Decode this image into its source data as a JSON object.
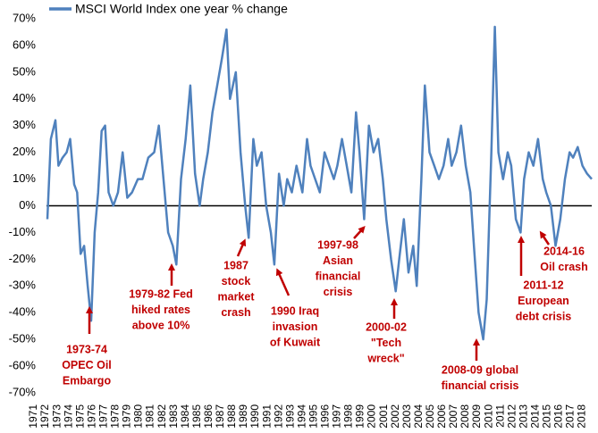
{
  "chart_data": {
    "type": "line",
    "series": [
      {
        "name": "MSCI World Index one year % change",
        "color": "#4f81bd",
        "x": [
          1972.15,
          1972.45,
          1972.84,
          1973.1,
          1973.45,
          1973.8,
          1974.1,
          1974.45,
          1974.7,
          1975.0,
          1975.3,
          1975.6,
          1975.9,
          1976.2,
          1976.5,
          1976.8,
          1977.1,
          1977.4,
          1977.8,
          1978.2,
          1978.6,
          1979.0,
          1979.4,
          1979.9,
          1980.3,
          1980.8,
          1981.3,
          1981.7,
          1982.1,
          1982.5,
          1982.9,
          1983.2,
          1983.6,
          1984.0,
          1984.4,
          1984.8,
          1985.2,
          1985.5,
          1985.9,
          1986.3,
          1986.7,
          1987.1,
          1987.5,
          1987.8,
          1988.3,
          1988.7,
          1989.1,
          1989.4,
          1989.8,
          1990.1,
          1990.5,
          1990.9,
          1991.3,
          1991.6,
          1992.0,
          1992.4,
          1992.7,
          1993.1,
          1993.5,
          1994.0,
          1994.4,
          1994.7,
          1995.1,
          1995.5,
          1995.9,
          1996.3,
          1996.7,
          1997.0,
          1997.4,
          1997.8,
          1998.2,
          1998.6,
          1998.9,
          1999.3,
          1999.7,
          2000.1,
          2000.5,
          2000.9,
          2001.2,
          2001.6,
          2002.0,
          2002.3,
          2002.7,
          2003.1,
          2003.5,
          2003.8,
          2004.2,
          2004.5,
          2004.9,
          2005.3,
          2005.7,
          2006.1,
          2006.5,
          2006.8,
          2007.2,
          2007.6,
          2008.0,
          2008.4,
          2008.7,
          2009.1,
          2009.5,
          2009.8,
          2010.2,
          2010.5,
          2010.8,
          2011.2,
          2011.6,
          2011.9,
          2012.3,
          2012.7,
          2013.0,
          2013.4,
          2013.8,
          2014.2,
          2014.6,
          2014.9,
          2015.3,
          2015.7,
          2016.1,
          2016.5,
          2016.9,
          2017.2,
          2017.6,
          2018.0,
          2018.4,
          2018.8
        ],
        "values": [
          -5,
          25,
          32,
          15,
          18,
          20,
          25,
          8,
          5,
          -18,
          -15,
          -30,
          -43,
          -10,
          5,
          28,
          30,
          5,
          0,
          5,
          20,
          3,
          5,
          10,
          10,
          18,
          20,
          30,
          10,
          -10,
          -15,
          -22,
          10,
          25,
          45,
          12,
          0,
          10,
          20,
          35,
          45,
          55,
          66,
          40,
          50,
          20,
          0,
          -12,
          25,
          15,
          20,
          0,
          -10,
          -22,
          12,
          0,
          10,
          5,
          15,
          5,
          25,
          15,
          10,
          5,
          20,
          15,
          10,
          15,
          25,
          15,
          5,
          35,
          20,
          -5,
          30,
          20,
          25,
          10,
          -5,
          -20,
          -32,
          -20,
          -5,
          -25,
          -15,
          -30,
          10,
          45,
          20,
          15,
          10,
          15,
          25,
          15,
          20,
          30,
          15,
          5,
          -15,
          -40,
          -50,
          -35,
          20,
          67,
          20,
          10,
          20,
          15,
          -5,
          -10,
          10,
          20,
          15,
          25,
          10,
          5,
          0,
          -15,
          -5,
          10,
          20,
          18,
          22,
          15,
          12,
          10
        ]
      }
    ],
    "xlim": [
      1971,
      2018.8
    ],
    "xticks": [
      1971,
      1972,
      1973,
      1974,
      1975,
      1976,
      1977,
      1978,
      1979,
      1980,
      1981,
      1982,
      1983,
      1984,
      1985,
      1986,
      1987,
      1988,
      1989,
      1990,
      1991,
      1992,
      1993,
      1994,
      1995,
      1996,
      1997,
      1998,
      1999,
      2000,
      2001,
      2002,
      2003,
      2004,
      2005,
      2006,
      2007,
      2008,
      2009,
      2010,
      2011,
      2012,
      2013,
      2014,
      2015,
      2016,
      2017,
      2018
    ],
    "ylim": [
      -70,
      70
    ],
    "yticks": [
      {
        "value": 70,
        "label": "70%"
      },
      {
        "value": 60,
        "label": "60%"
      },
      {
        "value": 50,
        "label": "50%"
      },
      {
        "value": 40,
        "label": "40%"
      },
      {
        "value": 30,
        "label": "30%"
      },
      {
        "value": 20,
        "label": "20%"
      },
      {
        "value": 10,
        "label": "10%"
      },
      {
        "value": 0,
        "label": "0%"
      },
      {
        "value": -10,
        "label": "-10%"
      },
      {
        "value": -20,
        "label": "-20%"
      },
      {
        "value": -30,
        "label": "-30%"
      },
      {
        "value": -40,
        "label": "-40%"
      },
      {
        "value": -50,
        "label": "-50%"
      },
      {
        "value": -60,
        "label": "-60%"
      },
      {
        "value": -70,
        "label": "-70%"
      }
    ],
    "grid": false,
    "legend": "top",
    "annotations": [
      {
        "lines": [
          "1973-74",
          "OPEC Oil",
          "Embargo"
        ]
      },
      {
        "lines": [
          "1979-82 Fed",
          "hiked rates",
          "above 10%"
        ]
      },
      {
        "lines": [
          "1987",
          "stock",
          "market",
          "crash"
        ]
      },
      {
        "lines": [
          "1990 Iraq",
          "invasion",
          "of Kuwait"
        ]
      },
      {
        "lines": [
          "1997-98",
          "Asian",
          "financial",
          "crisis"
        ]
      },
      {
        "lines": [
          "2000-02",
          "\"Tech",
          "wreck\""
        ]
      },
      {
        "lines": [
          "2008-09 global",
          "financial crisis"
        ]
      },
      {
        "lines": [
          "2011-12",
          "European",
          "debt crisis"
        ]
      },
      {
        "lines": [
          "2014-16",
          "Oil crash"
        ]
      }
    ]
  }
}
